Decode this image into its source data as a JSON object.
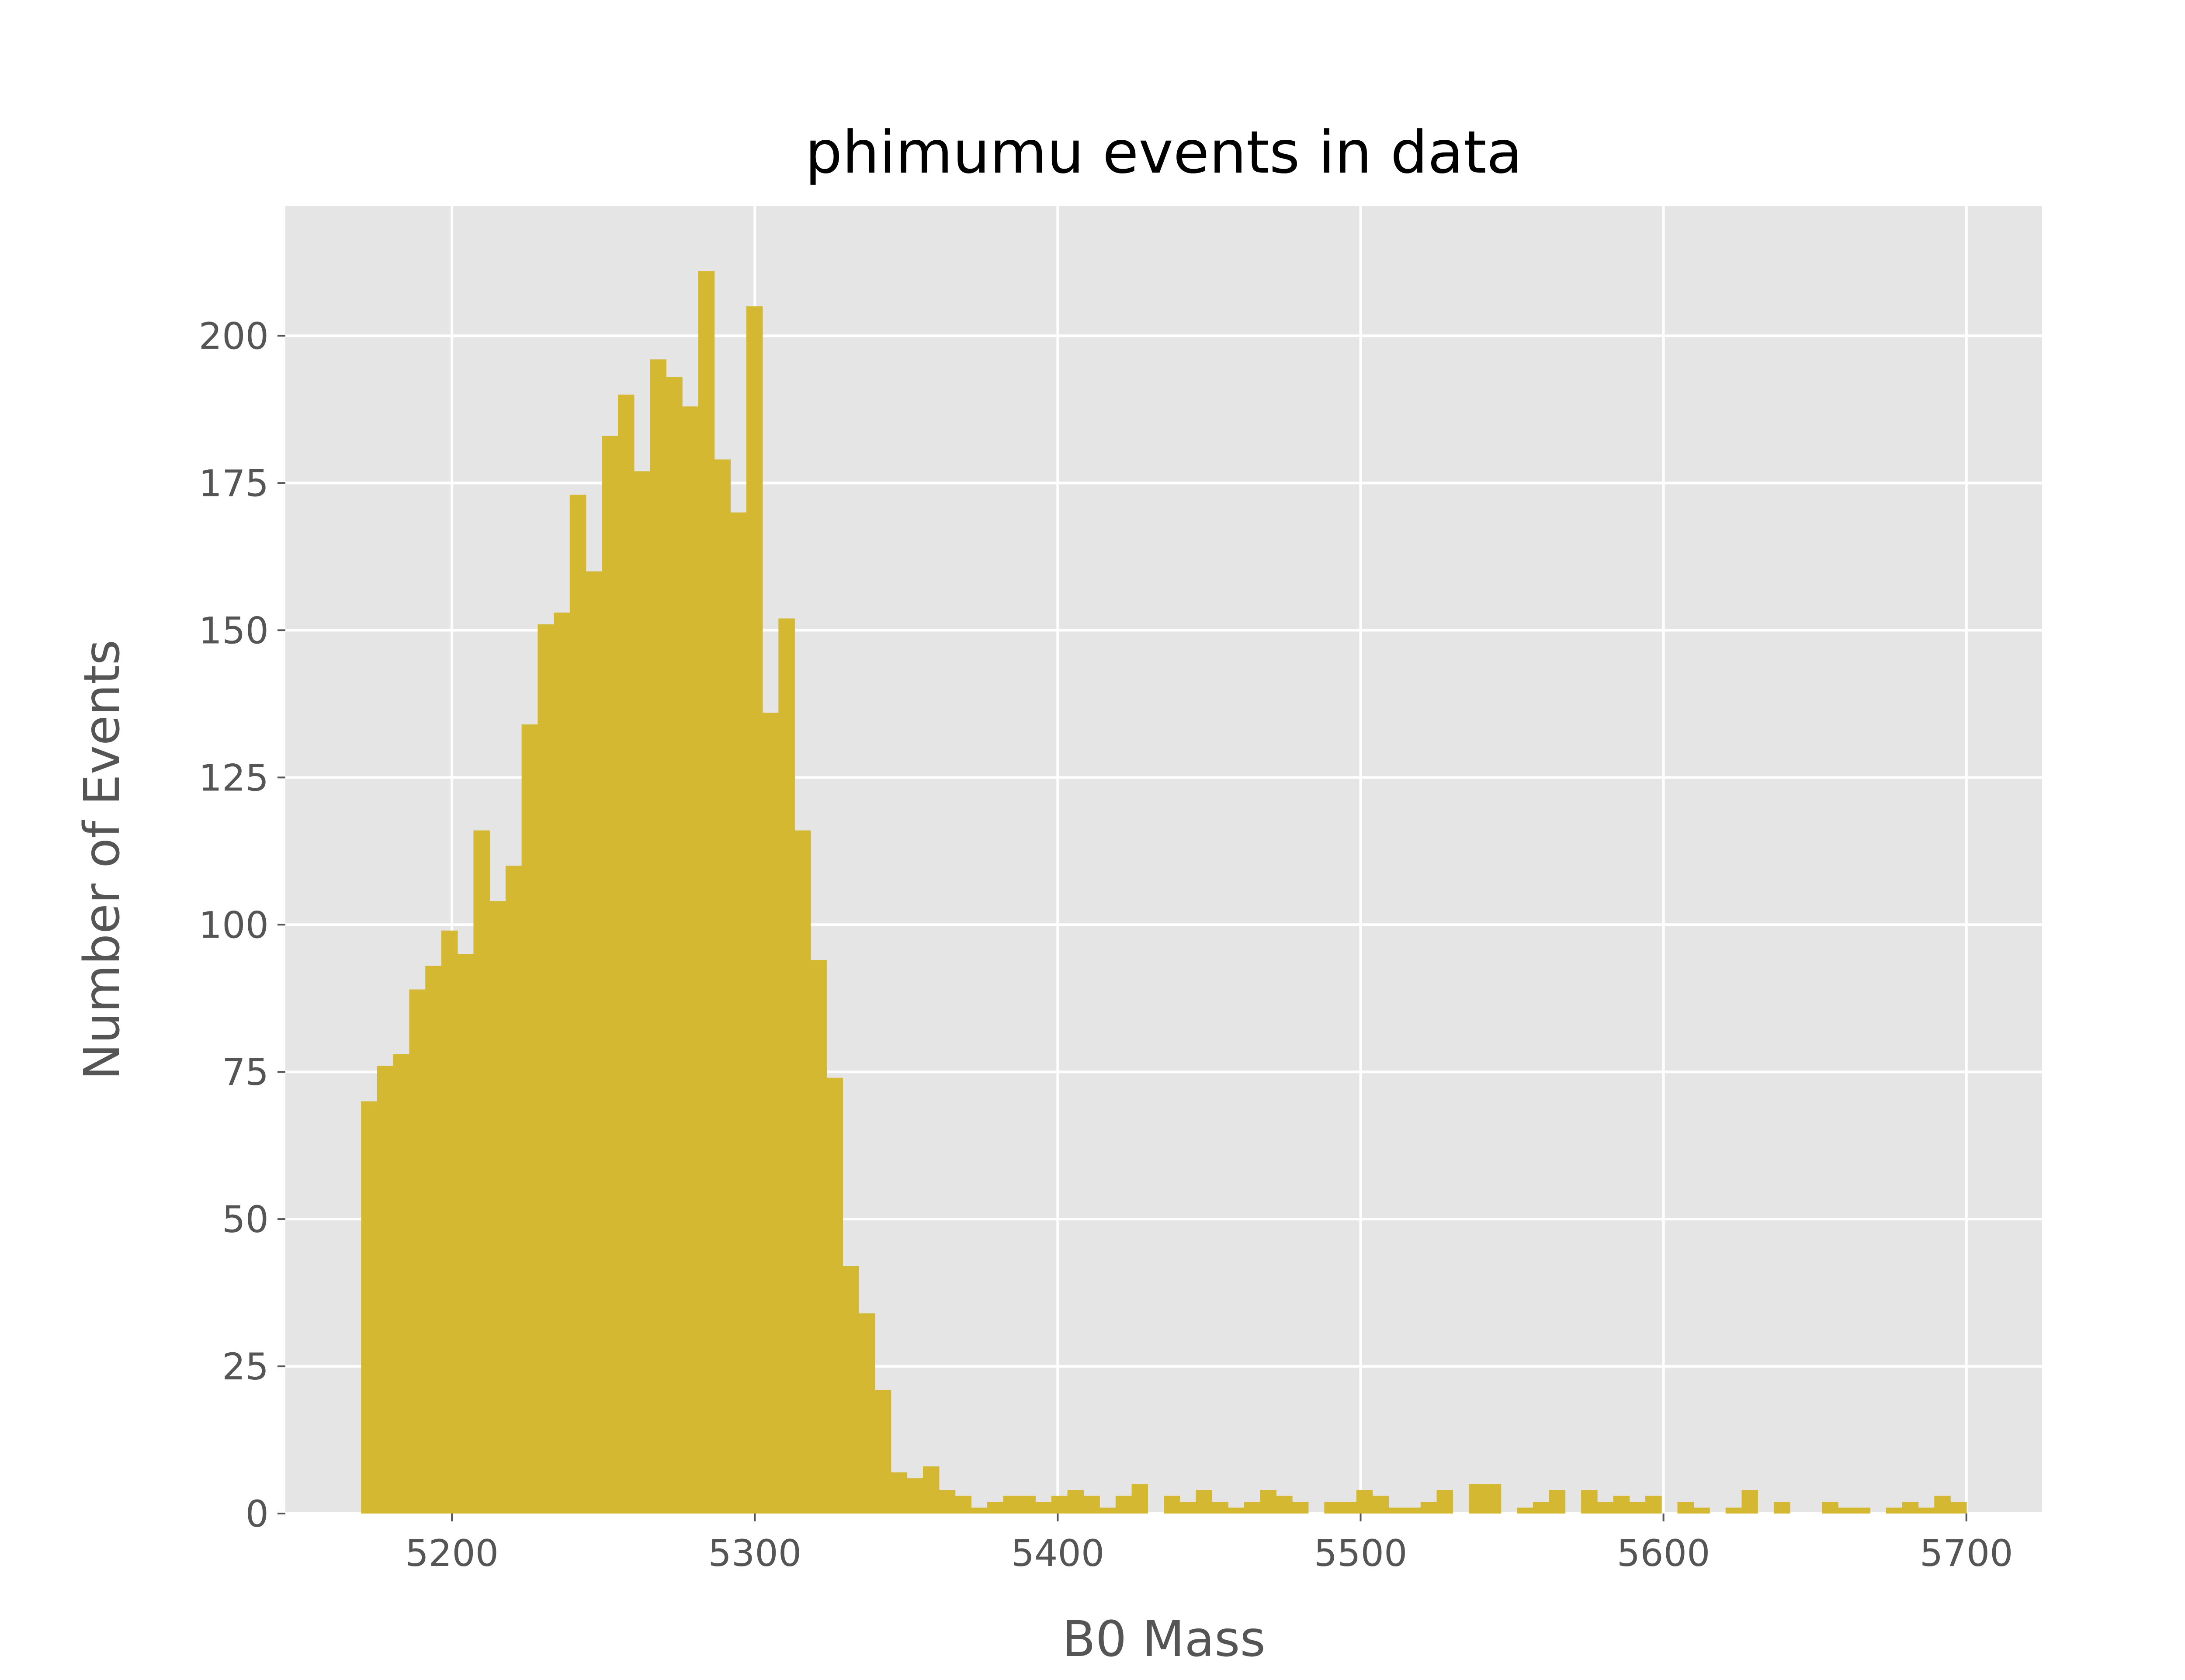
{
  "chart_data": {
    "type": "bar",
    "title": "phimumu events in data",
    "xlabel": "B0 Mass",
    "ylabel": "Number of Events",
    "xlim": [
      5145,
      5725
    ],
    "ylim": [
      0,
      222
    ],
    "xticks": [
      5200,
      5300,
      5400,
      5500,
      5600,
      5700
    ],
    "yticks": [
      0,
      25,
      50,
      75,
      100,
      125,
      150,
      175,
      200
    ],
    "grid": true,
    "legend": "none",
    "bin_edges_range": [
      5170,
      5700
    ],
    "bin_count": 100,
    "values": [
      70,
      76,
      78,
      89,
      93,
      99,
      95,
      116,
      104,
      110,
      134,
      151,
      153,
      173,
      160,
      183,
      190,
      177,
      196,
      193,
      188,
      211,
      179,
      170,
      205,
      136,
      152,
      116,
      94,
      74,
      42,
      34,
      21,
      7,
      6,
      8,
      4,
      3,
      1,
      2,
      3,
      3,
      2,
      3,
      4,
      3,
      1,
      3,
      5,
      0,
      3,
      2,
      4,
      2,
      1,
      2,
      4,
      3,
      2,
      0,
      2,
      2,
      4,
      3,
      1,
      1,
      2,
      4,
      0,
      5,
      5,
      0,
      1,
      2,
      4,
      0,
      4,
      2,
      3,
      2,
      3,
      0,
      2,
      1,
      0,
      1,
      4,
      0,
      2,
      0,
      0,
      2,
      1,
      1,
      0,
      1,
      2,
      1,
      3,
      2
    ],
    "colors": {
      "bar": "#d4b832",
      "plot_background": "#e5e5e5",
      "grid": "#ffffff",
      "text": "#555555",
      "title": "#000000"
    }
  }
}
